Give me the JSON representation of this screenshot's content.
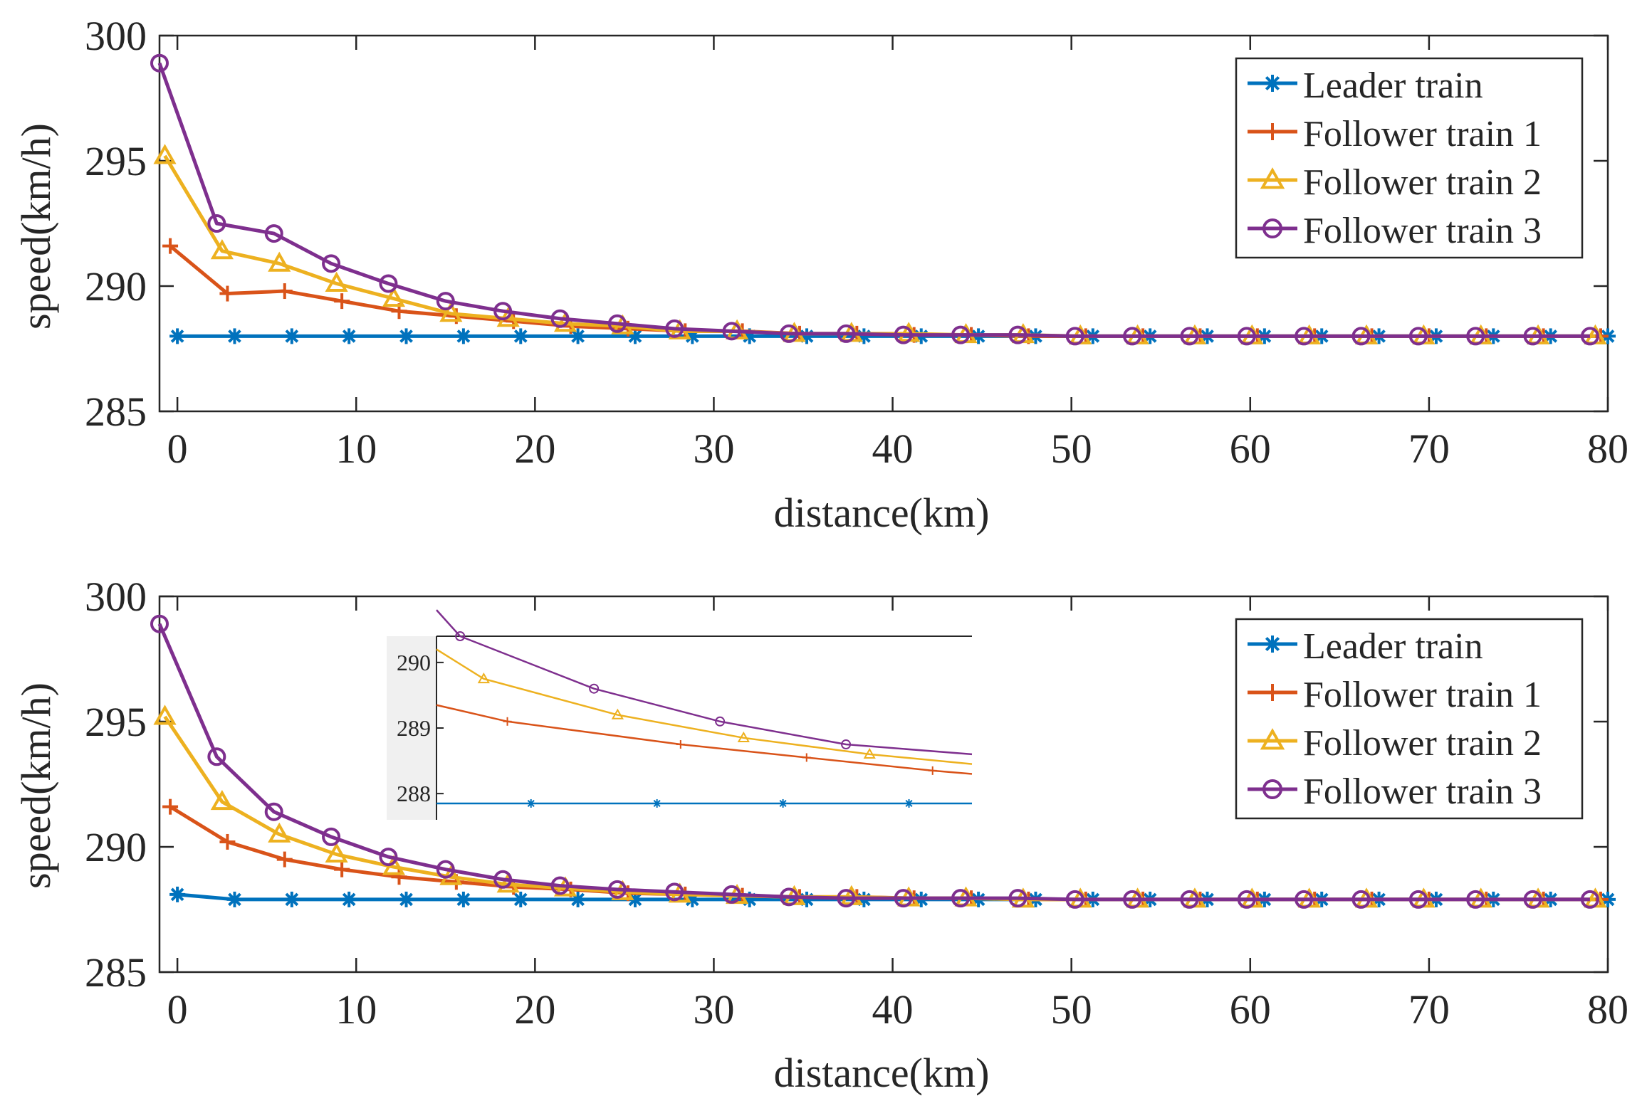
{
  "colors": {
    "leader": "#0072BD",
    "follower1": "#D95319",
    "follower2": "#EDB120",
    "follower3": "#7E2F8E",
    "axis": "#262626",
    "inset_background": "#F0F0F0"
  },
  "chart_data": [
    {
      "id": "top",
      "type": "line",
      "xlabel": "distance(km)",
      "ylabel": "speed(km/h)",
      "xlim": [
        -1,
        80
      ],
      "ylim": [
        285,
        300
      ],
      "xticks": [
        0,
        10,
        20,
        30,
        40,
        50,
        60,
        70,
        80
      ],
      "yticks": [
        285,
        290,
        295,
        300
      ],
      "legend_position": "top-right",
      "legend": [
        "Leader train",
        "Follower train 1",
        "Follower train 2",
        "Follower train 3"
      ],
      "series": [
        {
          "name": "Leader train",
          "marker": "asterisk",
          "color_key": "leader",
          "x": [
            0,
            3.2,
            6.4,
            9.6,
            12.8,
            16,
            19.2,
            22.4,
            25.6,
            28.8,
            32,
            35.2,
            38.4,
            41.6,
            44.8,
            48,
            51.2,
            54.4,
            57.6,
            60.8,
            64,
            67.2,
            70.4,
            73.6,
            76.8,
            80
          ],
          "y": [
            288,
            288,
            288,
            288,
            288,
            288,
            288,
            288,
            288,
            288,
            288,
            288,
            288,
            288,
            288,
            288,
            288,
            288,
            288,
            288,
            288,
            288,
            288,
            288,
            288,
            288
          ]
        },
        {
          "name": "Follower train 1",
          "marker": "plus",
          "color_key": "follower1",
          "x": [
            -0.4,
            2.8,
            6.0,
            9.2,
            12.4,
            15.6,
            18.8,
            22.0,
            25.2,
            28.4,
            31.6,
            34.8,
            38.0,
            41.2,
            44.4,
            47.6,
            50.8,
            54.0,
            57.2,
            60.4,
            63.6,
            66.8,
            70.0,
            73.2,
            76.4,
            79.6
          ],
          "y": [
            291.6,
            289.7,
            289.8,
            289.4,
            289.0,
            288.8,
            288.6,
            288.4,
            288.3,
            288.2,
            288.2,
            288.1,
            288.1,
            288.05,
            288.05,
            288.0,
            288.0,
            288.0,
            288.0,
            288.0,
            288.0,
            288.0,
            288.0,
            288.0,
            288.0,
            288.0
          ]
        },
        {
          "name": "Follower train 2",
          "marker": "triangle",
          "color_key": "follower2",
          "x": [
            -0.7,
            2.5,
            5.7,
            8.9,
            12.1,
            15.3,
            18.5,
            21.7,
            24.9,
            28.1,
            31.3,
            34.5,
            37.7,
            40.9,
            44.1,
            47.3,
            50.5,
            53.7,
            56.9,
            60.1,
            63.3,
            66.5,
            69.7,
            72.9,
            76.1,
            79.3
          ],
          "y": [
            295.2,
            291.4,
            290.9,
            290.1,
            289.5,
            288.9,
            288.7,
            288.5,
            288.4,
            288.2,
            288.2,
            288.1,
            288.1,
            288.1,
            288.05,
            288.05,
            288.0,
            288.0,
            288.0,
            288.0,
            288.0,
            288.0,
            288.0,
            288.0,
            288.0,
            288.0
          ]
        },
        {
          "name": "Follower train 3",
          "marker": "circle",
          "color_key": "follower3",
          "x": [
            -1,
            2.2,
            5.4,
            8.6,
            11.8,
            15.0,
            18.2,
            21.4,
            24.6,
            27.8,
            31.0,
            34.2,
            37.4,
            40.6,
            43.8,
            47.0,
            50.2,
            53.4,
            56.6,
            59.8,
            63.0,
            66.2,
            69.4,
            72.6,
            75.8,
            79.0
          ],
          "y": [
            298.9,
            292.5,
            292.1,
            290.9,
            290.1,
            289.4,
            289.0,
            288.7,
            288.5,
            288.3,
            288.2,
            288.1,
            288.1,
            288.05,
            288.05,
            288.05,
            288.0,
            288.0,
            288.0,
            288.0,
            288.0,
            288.0,
            288.0,
            288.0,
            288.0,
            288.0
          ]
        }
      ]
    },
    {
      "id": "bottom",
      "type": "line",
      "xlabel": "distance(km)",
      "ylabel": "speed(km/h)",
      "xlim": [
        -1,
        80
      ],
      "ylim": [
        285,
        300
      ],
      "xticks": [
        0,
        10,
        20,
        30,
        40,
        50,
        60,
        70,
        80
      ],
      "yticks": [
        285,
        290,
        295,
        300
      ],
      "legend_position": "top-right",
      "legend": [
        "Leader train",
        "Follower train 1",
        "Follower train 2",
        "Follower train 3"
      ],
      "series": [
        {
          "name": "Leader train",
          "marker": "asterisk",
          "color_key": "leader",
          "x": [
            0,
            3.2,
            6.4,
            9.6,
            12.8,
            16,
            19.2,
            22.4,
            25.6,
            28.8,
            32,
            35.2,
            38.4,
            41.6,
            44.8,
            48,
            51.2,
            54.4,
            57.6,
            60.8,
            64,
            67.2,
            70.4,
            73.6,
            76.8,
            80
          ],
          "y": [
            288.1,
            287.9,
            287.9,
            287.9,
            287.9,
            287.9,
            287.9,
            287.9,
            287.9,
            287.9,
            287.9,
            287.9,
            287.9,
            287.9,
            287.9,
            287.9,
            287.9,
            287.9,
            287.9,
            287.9,
            287.9,
            287.9,
            287.9,
            287.9,
            287.9,
            287.9
          ]
        },
        {
          "name": "Follower train 1",
          "marker": "plus",
          "color_key": "follower1",
          "x": [
            -0.4,
            2.8,
            6.0,
            9.2,
            12.4,
            15.6,
            18.8,
            22.0,
            25.2,
            28.4,
            31.6,
            34.8,
            38.0,
            41.2,
            44.4,
            47.6,
            50.8,
            54.0,
            57.2,
            60.4,
            63.6,
            66.8,
            70.0,
            73.2,
            76.4,
            79.6
          ],
          "y": [
            291.6,
            290.2,
            289.5,
            289.1,
            288.8,
            288.6,
            288.4,
            288.3,
            288.15,
            288.1,
            288.05,
            288.0,
            288.0,
            287.95,
            287.95,
            287.9,
            287.9,
            287.9,
            287.9,
            287.9,
            287.9,
            287.9,
            287.9,
            287.9,
            287.9,
            287.9
          ]
        },
        {
          "name": "Follower train 2",
          "marker": "triangle",
          "color_key": "follower2",
          "x": [
            -0.7,
            2.5,
            5.7,
            8.9,
            12.1,
            15.3,
            18.5,
            21.7,
            24.9,
            28.1,
            31.3,
            34.5,
            37.7,
            40.9,
            44.1,
            47.3,
            50.5,
            53.7,
            56.9,
            60.1,
            63.3,
            66.5,
            69.7,
            72.9,
            76.1,
            79.3
          ],
          "y": [
            295.2,
            291.8,
            290.5,
            289.7,
            289.2,
            288.8,
            288.5,
            288.35,
            288.2,
            288.1,
            288.05,
            288.0,
            288.0,
            287.95,
            287.95,
            287.9,
            287.9,
            287.9,
            287.9,
            287.9,
            287.9,
            287.9,
            287.9,
            287.9,
            287.9,
            287.9
          ]
        },
        {
          "name": "Follower train 3",
          "marker": "circle",
          "color_key": "follower3",
          "x": [
            -1,
            2.2,
            5.4,
            8.6,
            11.8,
            15.0,
            18.2,
            21.4,
            24.6,
            27.8,
            31.0,
            34.2,
            37.4,
            40.6,
            43.8,
            47.0,
            50.2,
            53.4,
            56.6,
            59.8,
            63.0,
            66.2,
            69.4,
            72.6,
            75.8,
            79.0
          ],
          "y": [
            298.9,
            293.6,
            291.4,
            290.4,
            289.6,
            289.1,
            288.7,
            288.45,
            288.3,
            288.2,
            288.1,
            288.0,
            287.95,
            287.95,
            287.95,
            287.95,
            287.9,
            287.9,
            287.9,
            287.9,
            287.9,
            287.9,
            287.9,
            287.9,
            287.9,
            287.9
          ]
        }
      ],
      "inset": {
        "type": "line",
        "xlim": [
          11.2,
          18.0
        ],
        "ylim": [
          287.6,
          290.4
        ],
        "xticks": [],
        "yticks": [
          288,
          289,
          290
        ],
        "series": [
          {
            "name": "Leader train",
            "marker": "asterisk",
            "color_key": "leader",
            "x": [
              11.2,
              12.4,
              14.0,
              15.6,
              17.2,
              18.0
            ],
            "y": [
              287.85,
              287.85,
              287.85,
              287.85,
              287.85,
              287.85
            ],
            "marker_idx": [
              1,
              2,
              3,
              4
            ]
          },
          {
            "name": "Follower train 1",
            "marker": "plus",
            "color_key": "follower1",
            "x": [
              11.2,
              12.1,
              14.3,
              15.9,
              17.5,
              18.0
            ],
            "y": [
              289.35,
              289.1,
              288.75,
              288.55,
              288.35,
              288.3
            ],
            "marker_idx": [
              1,
              2,
              3,
              4
            ]
          },
          {
            "name": "Follower train 2",
            "marker": "triangle",
            "color_key": "follower2",
            "x": [
              11.2,
              11.8,
              13.5,
              15.1,
              16.7,
              18.0
            ],
            "y": [
              290.2,
              289.75,
              289.2,
              288.85,
              288.6,
              288.45
            ],
            "marker_idx": [
              1,
              2,
              3,
              4
            ]
          },
          {
            "name": "Follower train 3",
            "marker": "circle",
            "color_key": "follower3",
            "x": [
              11.2,
              11.5,
              13.2,
              14.8,
              16.4,
              18.0
            ],
            "y": [
              290.8,
              290.4,
              289.6,
              289.1,
              288.75,
              288.6
            ],
            "marker_idx": [
              1,
              2,
              3,
              4
            ]
          }
        ]
      }
    }
  ]
}
